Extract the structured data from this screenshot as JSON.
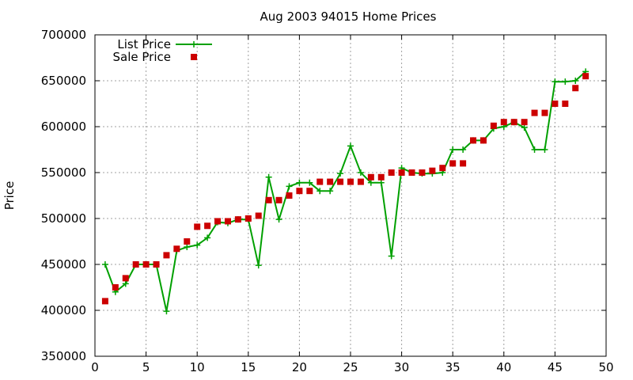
{
  "chart_data": {
    "type": "line",
    "title": "Aug 2003 94015 Home Prices",
    "xlabel": "",
    "ylabel": "Price",
    "xlim": [
      0,
      50
    ],
    "ylim": [
      350000,
      700000
    ],
    "xticks": [
      0,
      5,
      10,
      15,
      20,
      25,
      30,
      35,
      40,
      45,
      50
    ],
    "yticks": [
      350000,
      400000,
      450000,
      500000,
      550000,
      600000,
      650000,
      700000
    ],
    "grid": true,
    "legend_position": "top-left",
    "series": [
      {
        "name": "List Price",
        "style": "line+plus",
        "color": "#00a000",
        "x": [
          1,
          2,
          3,
          4,
          5,
          6,
          7,
          8,
          9,
          10,
          11,
          12,
          13,
          14,
          15,
          16,
          17,
          18,
          19,
          20,
          21,
          22,
          23,
          24,
          25,
          26,
          27,
          28,
          29,
          30,
          31,
          32,
          33,
          34,
          35,
          36,
          37,
          38,
          39,
          40,
          41,
          42,
          43,
          44,
          45,
          46,
          47,
          48
        ],
        "y": [
          450000,
          420000,
          429000,
          450000,
          450000,
          450000,
          399000,
          465000,
          469000,
          471000,
          479000,
          496000,
          495000,
          499000,
          499000,
          449000,
          545000,
          499000,
          535000,
          539000,
          539000,
          530000,
          530000,
          549000,
          579000,
          550000,
          539000,
          539000,
          459000,
          555000,
          550000,
          549000,
          549000,
          550000,
          575000,
          575000,
          585000,
          585000,
          598000,
          600000,
          605000,
          599000,
          575000,
          575000,
          649000,
          649000,
          650000,
          660000
        ]
      },
      {
        "name": "Sale Price",
        "style": "square",
        "color": "#cc0000",
        "x": [
          1,
          2,
          3,
          4,
          5,
          6,
          7,
          8,
          9,
          10,
          11,
          12,
          13,
          14,
          15,
          16,
          17,
          18,
          19,
          20,
          21,
          22,
          23,
          24,
          25,
          26,
          27,
          28,
          29,
          30,
          31,
          32,
          33,
          34,
          35,
          36,
          37,
          38,
          39,
          40,
          41,
          42,
          43,
          44,
          45,
          46,
          47,
          48
        ],
        "y": [
          410000,
          425000,
          435000,
          450000,
          450000,
          450000,
          460000,
          467000,
          475000,
          491000,
          492000,
          497000,
          497000,
          499000,
          500000,
          503000,
          520000,
          520000,
          525000,
          530000,
          530000,
          540000,
          540000,
          540000,
          540000,
          540000,
          545000,
          545000,
          550000,
          550000,
          550000,
          550000,
          552000,
          555000,
          560000,
          560000,
          585000,
          585000,
          601000,
          605000,
          605000,
          605000,
          615000,
          615000,
          625000,
          625000,
          642000,
          655000
        ]
      }
    ]
  }
}
